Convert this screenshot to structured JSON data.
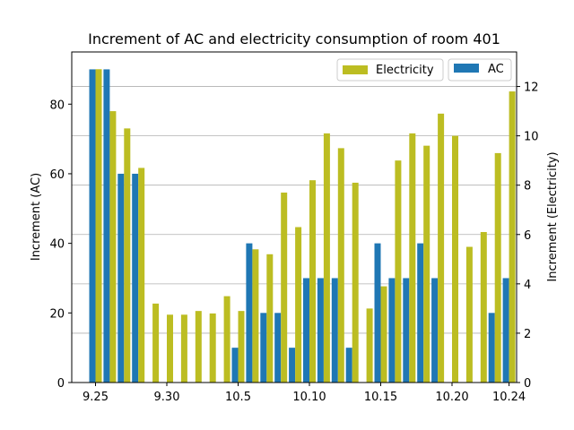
{
  "chart_data": {
    "type": "bar",
    "title": "Increment of AC and electricity consumption of room 401",
    "ylabel_left": "Increment (AC)",
    "ylabel_right": "Increment (Electricity)",
    "ylim_left": [
      0,
      95
    ],
    "ylim_right": [
      0,
      13.4
    ],
    "yticks_left": [
      "0",
      "20",
      "40",
      "60",
      "80"
    ],
    "yticks_right": [
      "0",
      "2",
      "4",
      "6",
      "8",
      "10",
      "12"
    ],
    "xticks": [
      {
        "label": "9.25",
        "index": 0
      },
      {
        "label": "9.30",
        "index": 5
      },
      {
        "label": "10.5",
        "index": 10
      },
      {
        "label": "10.10",
        "index": 15
      },
      {
        "label": "10.15",
        "index": 20
      },
      {
        "label": "10.20",
        "index": 25
      },
      {
        "label": "10.24",
        "index": 29
      }
    ],
    "grid": "horizontal (right axis)",
    "legend_position": "top-right",
    "series": [
      {
        "name": "AC",
        "axis": "left",
        "color": "#1f77b4",
        "values": [
          90,
          90,
          60,
          60,
          0,
          0,
          0,
          0,
          0,
          10,
          40,
          20,
          20,
          10,
          30,
          30,
          30,
          10,
          0,
          40,
          30,
          30,
          40,
          30,
          0,
          0,
          20,
          30
        ]
      },
      {
        "name": "Electricity",
        "axis": "right",
        "color": "#bcbd22",
        "values": [
          12.7,
          11.0,
          10.3,
          8.7,
          3.2,
          2.75,
          2.75,
          2.9,
          2.8,
          3.5,
          2.9,
          5.4,
          5.2,
          7.7,
          6.3,
          8.2,
          10.1,
          9.5,
          8.1,
          3.0,
          3.9,
          9.0,
          10.1,
          9.6,
          10.9,
          10.0,
          5.5,
          6.1,
          9.3,
          11.8
        ]
      }
    ],
    "ac_indices": [
      0,
      1,
      2,
      3,
      5,
      6,
      7,
      8,
      9,
      10,
      11,
      12,
      13,
      14,
      15,
      16,
      17,
      18,
      19,
      20,
      21,
      22,
      23,
      24,
      25,
      26,
      28,
      29
    ]
  }
}
